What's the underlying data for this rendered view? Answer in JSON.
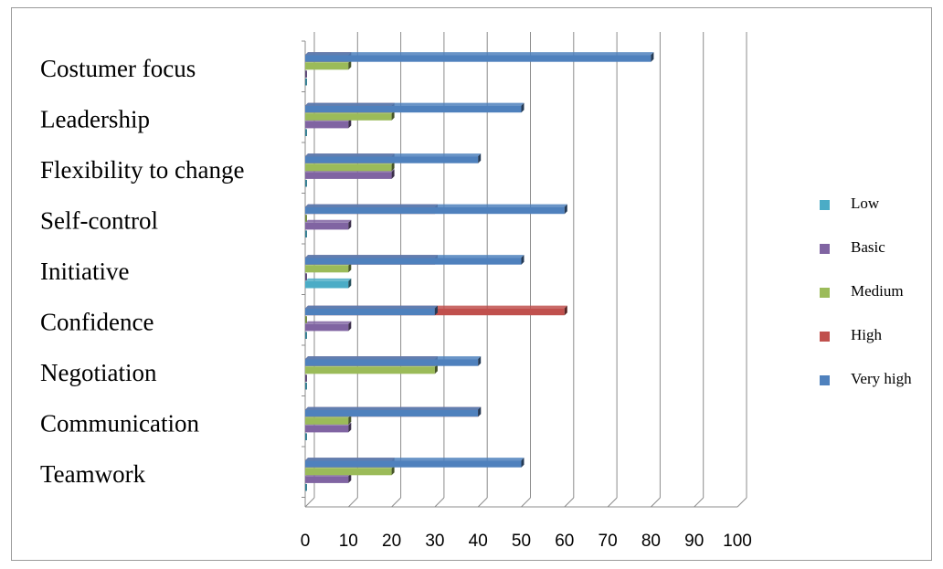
{
  "chart_data": {
    "type": "bar",
    "orientation": "horizontal",
    "style": "3d-clustered",
    "categories": [
      "Costumer focus",
      "Leadership",
      "Flexibility to change",
      "Self-control",
      "Initiative",
      "Confidence",
      "Negotiation",
      "Communication",
      "Teamwork"
    ],
    "series": [
      {
        "name": "Very high",
        "color": "#4f81bd",
        "values": [
          80,
          50,
          40,
          60,
          50,
          30,
          40,
          40,
          50
        ]
      },
      {
        "name": "High",
        "color": "#c0504d",
        "values": [
          10,
          20,
          20,
          30,
          30,
          60,
          30,
          40,
          20
        ]
      },
      {
        "name": "Medium",
        "color": "#9bbb59",
        "values": [
          10,
          20,
          20,
          0,
          10,
          0,
          30,
          10,
          20
        ]
      },
      {
        "name": "Basic",
        "color": "#8064a2",
        "values": [
          0,
          10,
          20,
          10,
          0,
          10,
          0,
          10,
          10
        ]
      },
      {
        "name": "Low",
        "color": "#4bacc6",
        "values": [
          0,
          0,
          0,
          0,
          10,
          0,
          0,
          0,
          0
        ]
      }
    ],
    "legend_order": [
      "Low",
      "Basic",
      "Medium",
      "High",
      "Very high"
    ],
    "xlim": [
      0,
      100
    ],
    "xticks": [
      "0",
      "10",
      "20",
      "30",
      "40",
      "50",
      "60",
      "70",
      "80",
      "90",
      "100"
    ],
    "grid": true,
    "legend_position": "right"
  }
}
